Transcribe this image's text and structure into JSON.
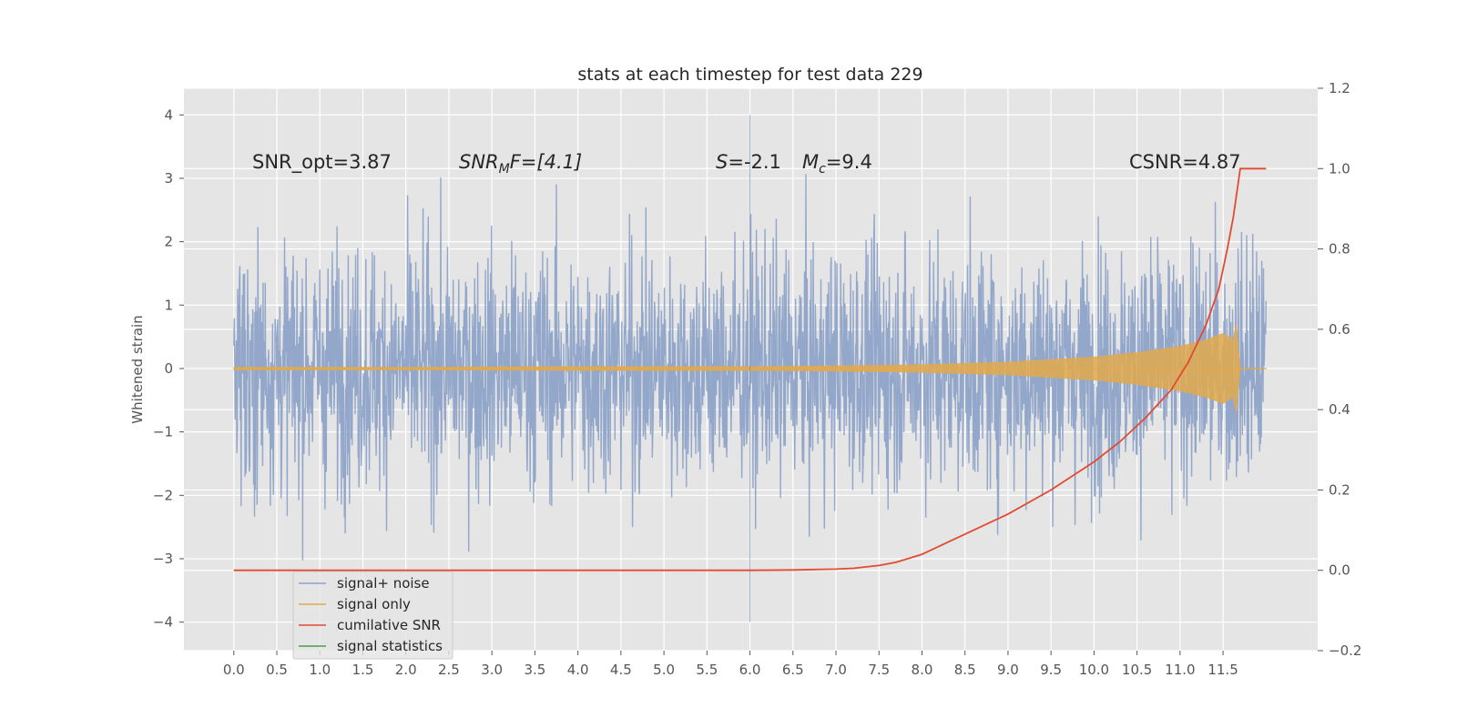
{
  "chart_data": {
    "type": "line",
    "title": "stats at each timestep for test data 229",
    "ylabel": "Whitened strain",
    "xlabel": "",
    "xlim": [
      -0.58,
      12.6
    ],
    "ylim": [
      -4.45,
      4.42
    ],
    "y2lim": [
      -0.2,
      1.2
    ],
    "xticks": [
      "0.0",
      "0.5",
      "1.0",
      "1.5",
      "2.0",
      "2.5",
      "3.0",
      "3.5",
      "4.0",
      "4.5",
      "5.0",
      "5.5",
      "6.0",
      "6.5",
      "7.0",
      "7.5",
      "8.0",
      "8.5",
      "9.0",
      "9.5",
      "10.0",
      "10.5",
      "11.0",
      "11.5"
    ],
    "yticks": [
      "4",
      "3",
      "2",
      "1",
      "0",
      "−1",
      "−2",
      "−3",
      "−4"
    ],
    "y2ticks": [
      "1.2",
      "1.0",
      "0.8",
      "0.6",
      "0.4",
      "0.2",
      "0.0",
      "−0.2"
    ],
    "grid": true,
    "legend_position": "lower-left",
    "legend": [
      "signal+ noise",
      "signal only",
      "cumilative SNR",
      "signal statistics"
    ],
    "annotations": {
      "snr_opt": "SNR_opt=3.87",
      "snr_mf_sym": "SNR",
      "snr_mf_sub": "M",
      "snr_mf_rest": "F=[4.1]",
      "s_sym": "S",
      "s_val": "=-2.1",
      "mc_sym": "M",
      "mc_sub": "c",
      "mc_val": "=9.4",
      "csnr": "CSNR=4.87"
    },
    "series": [
      {
        "name": "signal+ noise",
        "color": "#8ea3c8",
        "x_range": [
          0.0,
          12.0
        ],
        "y_range": [
          -4.1,
          4.05
        ],
        "description_note": "dense noise trace"
      },
      {
        "name": "signal only",
        "color": "#e0a94e",
        "x": [
          0.0,
          2.0,
          4.0,
          6.0,
          7.0,
          8.0,
          9.0,
          10.0,
          10.5,
          11.0,
          11.3,
          11.5,
          11.62,
          11.65,
          11.7,
          12.0
        ],
        "y": [
          0.02,
          0.02,
          0.03,
          0.03,
          0.04,
          0.06,
          0.1,
          0.18,
          0.25,
          0.35,
          0.45,
          0.55,
          0.45,
          -0.7,
          0.0,
          0.0
        ]
      },
      {
        "name": "cumilative SNR",
        "color": "#e24a33",
        "x": [
          0.0,
          1.0,
          2.0,
          3.0,
          4.0,
          5.0,
          6.0,
          6.5,
          7.0,
          7.2,
          7.5,
          7.7,
          8.0,
          8.3,
          8.6,
          9.0,
          9.5,
          10.0,
          10.3,
          10.6,
          10.9,
          11.1,
          11.3,
          11.45,
          11.55,
          11.62,
          11.7,
          12.0
        ],
        "y": [
          0.0,
          0.0,
          0.0,
          0.0,
          0.0,
          0.0,
          0.0,
          0.001,
          0.003,
          0.005,
          0.012,
          0.02,
          0.04,
          0.07,
          0.1,
          0.14,
          0.2,
          0.27,
          0.32,
          0.38,
          0.45,
          0.52,
          0.61,
          0.7,
          0.8,
          0.88,
          1.0,
          1.0
        ]
      },
      {
        "name": "signal statistics",
        "color": "#4c9f4c",
        "x": [
          6.0,
          6.0
        ],
        "y": [
          -4.0,
          4.0
        ]
      }
    ],
    "noise_envelope": {
      "x": [
        0.0,
        12.0
      ],
      "typical_upper": 2.0,
      "typical_lower": -2.0
    }
  }
}
